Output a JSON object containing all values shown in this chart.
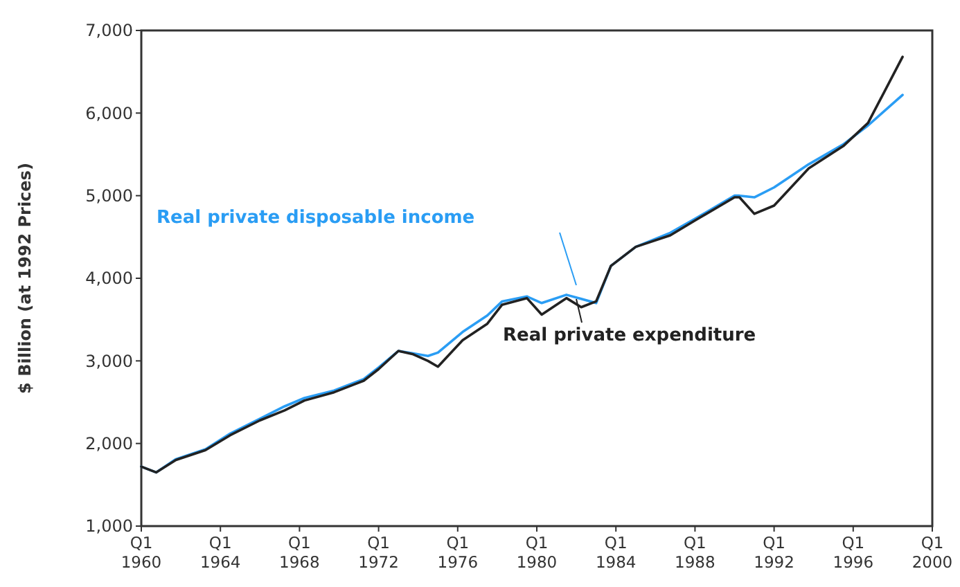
{
  "chart_data": {
    "type": "line",
    "ylabel": "$ Billion (at 1992 Prices)",
    "xlim": [
      "1960-01",
      "2000-01"
    ],
    "ylim": [
      1000,
      7000
    ],
    "xticks": [
      {
        "value": "1960-01",
        "label": "Q1 1960"
      },
      {
        "value": "1964-01",
        "label": "Q1 1964"
      },
      {
        "value": "1968-01",
        "label": "Q1 1968"
      },
      {
        "value": "1972-01",
        "label": "Q1 1972"
      },
      {
        "value": "1976-01",
        "label": "Q1 1976"
      },
      {
        "value": "1980-01",
        "label": "Q1 1980"
      },
      {
        "value": "1984-01",
        "label": "Q1 1984"
      },
      {
        "value": "1988-01",
        "label": "Q1 1988"
      },
      {
        "value": "1992-01",
        "label": "Q1 1992"
      },
      {
        "value": "1996-01",
        "label": "Q1 1996"
      },
      {
        "value": "2000-01",
        "label": "Q1 2000"
      }
    ],
    "yticks": [
      {
        "value": 1000,
        "label": "1,000"
      },
      {
        "value": 2000,
        "label": "2,000"
      },
      {
        "value": 3000,
        "label": "3,000"
      },
      {
        "value": 4000,
        "label": "4,000"
      },
      {
        "value": 5000,
        "label": "5,000"
      },
      {
        "value": 6000,
        "label": "6,000"
      },
      {
        "value": 7000,
        "label": "7,000"
      }
    ],
    "grid": false,
    "marker": "none",
    "line_style": "solid",
    "x": [
      "1960-01",
      "1960-10",
      "1961-10",
      "1963-04",
      "1964-07",
      "1966-01",
      "1967-04",
      "1968-04",
      "1969-10",
      "1971-04",
      "1972-01",
      "1973-01",
      "1973-10",
      "1974-07",
      "1975-01",
      "1976-04",
      "1977-07",
      "1978-04",
      "1979-07",
      "1980-04",
      "1981-07",
      "1982-04",
      "1983-01",
      "1983-10",
      "1985-01",
      "1986-10",
      "1988-01",
      "1990-01",
      "1990-04",
      "1991-01",
      "1992-01",
      "1993-10",
      "1995-07",
      "1996-10",
      "1998-07"
    ],
    "series": [
      {
        "name": "Real private disposable income",
        "color": "#2a9df4",
        "values": [
          1720,
          1650,
          1810,
          1930,
          2120,
          2300,
          2450,
          2550,
          2640,
          2780,
          2920,
          3120,
          3090,
          3060,
          3100,
          3350,
          3550,
          3720,
          3780,
          3700,
          3800,
          3750,
          3700,
          4150,
          4380,
          4550,
          4720,
          5000,
          5000,
          4980,
          5100,
          5380,
          5620,
          5850,
          6220
        ]
      },
      {
        "name": "Real private expenditure",
        "color": "#222222",
        "values": [
          1720,
          1650,
          1800,
          1920,
          2100,
          2280,
          2400,
          2520,
          2620,
          2760,
          2900,
          3120,
          3080,
          3000,
          2930,
          3250,
          3450,
          3680,
          3760,
          3560,
          3760,
          3650,
          3720,
          4150,
          4380,
          4520,
          4700,
          4980,
          4980,
          4780,
          4880,
          5330,
          5600,
          5880,
          6680
        ]
      }
    ]
  }
}
